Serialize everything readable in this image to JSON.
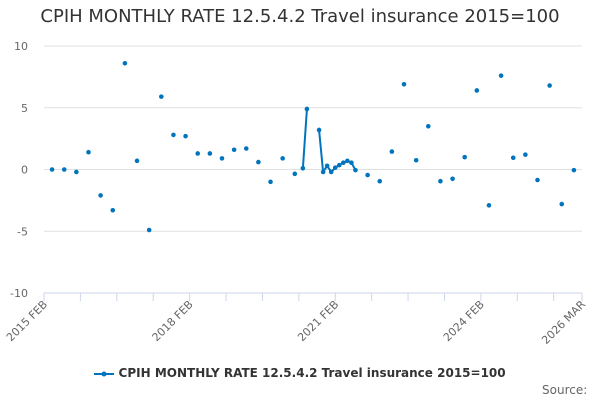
{
  "chart_data": {
    "type": "line",
    "title": "CPIH MONTHLY RATE 12.5.4.2 Travel insurance 2015=100",
    "xlabel": "",
    "ylabel": "",
    "ylim": [
      -10,
      10
    ],
    "yticks": [
      -10,
      -5,
      0,
      5,
      10
    ],
    "xlim": [
      "2015-02",
      "2026-03"
    ],
    "xtick_labels": [
      {
        "date": "2015-02",
        "label": "2015 FEB"
      },
      {
        "date": "2018-02",
        "label": "2018 FEB"
      },
      {
        "date": "2021-02",
        "label": "2021 FEB"
      },
      {
        "date": "2024-02",
        "label": "2024 FEB"
      },
      {
        "date": "2026-03",
        "label": "2026 MAR"
      }
    ],
    "grid": true,
    "legend_placement": "bottom",
    "series": [
      {
        "name": "CPIH MONTHLY RATE 12.5.4.2 Travel insurance 2015=100",
        "color": "#0075be",
        "points": [
          [
            "2015-04",
            0.0
          ],
          [
            "2015-07",
            0.0
          ],
          [
            "2015-10",
            -0.2
          ],
          [
            "2016-01",
            1.4
          ],
          [
            "2016-04",
            -2.1
          ],
          [
            "2016-07",
            -3.3
          ],
          [
            "2016-10",
            8.6
          ],
          [
            "2017-01",
            0.7
          ],
          [
            "2017-04",
            -4.9
          ],
          [
            "2017-07",
            5.9
          ],
          [
            "2017-10",
            2.8
          ],
          [
            "2018-01",
            2.7
          ],
          [
            "2018-04",
            1.3
          ],
          [
            "2018-07",
            1.3
          ],
          [
            "2018-10",
            0.9
          ],
          [
            "2019-01",
            1.6
          ],
          [
            "2019-04",
            1.7
          ],
          [
            "2019-07",
            0.6
          ],
          [
            "2019-10",
            -1.0
          ],
          [
            "2020-01",
            0.9
          ],
          [
            "2020-04",
            -0.35
          ],
          [
            "2020-06",
            0.1
          ],
          [
            "2020-07",
            4.9
          ],
          [
            "2020-10",
            3.2
          ],
          [
            "2020-11",
            -0.2
          ],
          [
            "2020-12",
            0.3
          ],
          [
            "2021-01",
            -0.2
          ],
          [
            "2021-02",
            0.15
          ],
          [
            "2021-03",
            0.35
          ],
          [
            "2021-04",
            0.55
          ],
          [
            "2021-05",
            0.7
          ],
          [
            "2021-06",
            0.55
          ],
          [
            "2021-07",
            -0.05
          ],
          [
            "2021-10",
            -0.45
          ],
          [
            "2022-01",
            -0.95
          ],
          [
            "2022-04",
            1.45
          ],
          [
            "2022-07",
            6.9
          ],
          [
            "2022-10",
            0.75
          ],
          [
            "2023-01",
            3.5
          ],
          [
            "2023-04",
            -0.95
          ],
          [
            "2023-07",
            -0.75
          ],
          [
            "2023-10",
            1.0
          ],
          [
            "2024-01",
            6.4
          ],
          [
            "2024-04",
            -2.9
          ],
          [
            "2024-07",
            7.6
          ],
          [
            "2024-10",
            0.95
          ],
          [
            "2025-01",
            1.2
          ],
          [
            "2025-04",
            -0.85
          ],
          [
            "2025-07",
            6.8
          ],
          [
            "2025-10",
            -2.8
          ],
          [
            "2026-01",
            -0.05
          ]
        ]
      }
    ]
  },
  "footer": {
    "source": "Source:"
  }
}
